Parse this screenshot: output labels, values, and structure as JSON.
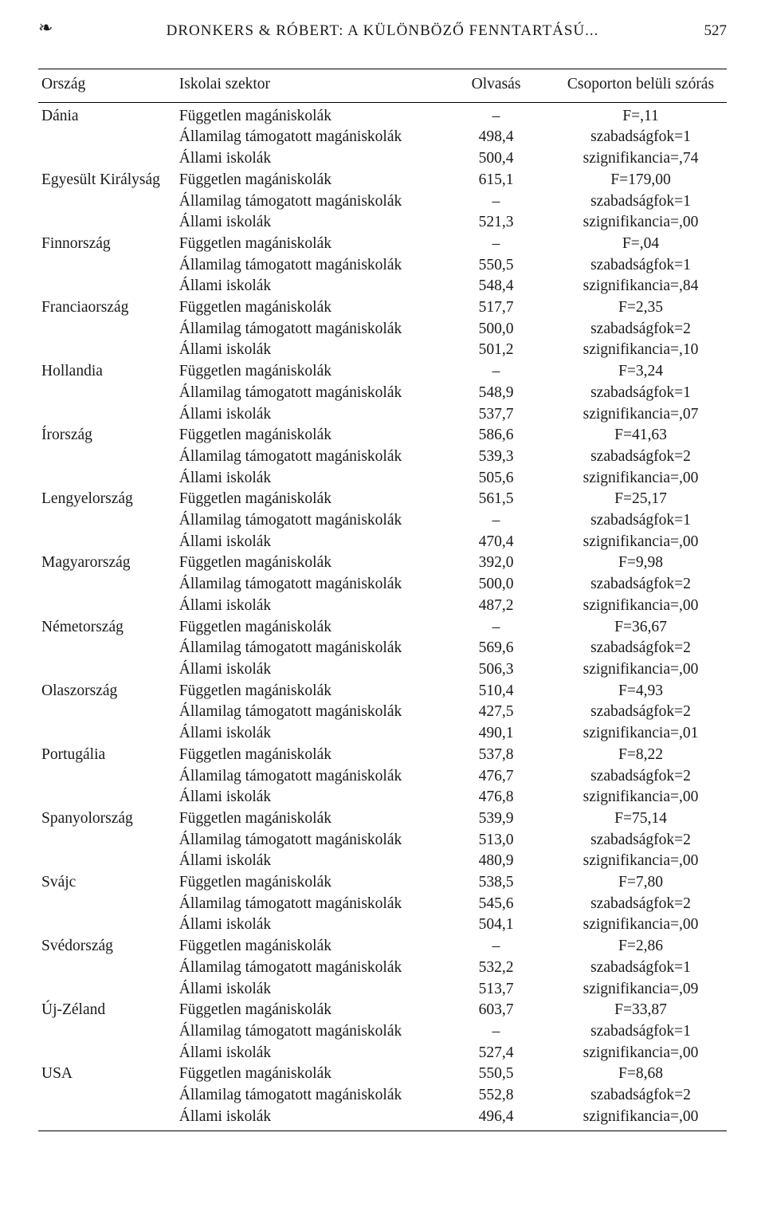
{
  "header": {
    "ornament": "❧",
    "running_title": "DRONKERS & RÓBERT: A KÜLÖNBÖZŐ FENNTARTÁSÚ...",
    "page_number": "527"
  },
  "table": {
    "columns": {
      "country": "Ország",
      "sector": "Iskolai szektor",
      "value": "Olvasás",
      "stat": "Csoporton belüli szórás"
    },
    "sector_labels": {
      "ind": "Független magániskolák",
      "gov": "Államilag támogatott magániskolák",
      "pub": "Állami iskolák"
    },
    "countries": [
      {
        "name": "Dánia",
        "rows": [
          {
            "sector": "ind",
            "value": "–",
            "stat": "F=,11"
          },
          {
            "sector": "gov",
            "value": "498,4",
            "stat": "szabadságfok=1"
          },
          {
            "sector": "pub",
            "value": "500,4",
            "stat": "szignifikancia=,74"
          }
        ]
      },
      {
        "name": "Egyesült Királyság",
        "rows": [
          {
            "sector": "ind",
            "value": "615,1",
            "stat": "F=179,00"
          },
          {
            "sector": "gov",
            "value": "–",
            "stat": "szabadságfok=1"
          },
          {
            "sector": "pub",
            "value": "521,3",
            "stat": "szignifikancia=,00"
          }
        ]
      },
      {
        "name": "Finnország",
        "rows": [
          {
            "sector": "ind",
            "value": "–",
            "stat": "F=,04"
          },
          {
            "sector": "gov",
            "value": "550,5",
            "stat": "szabadságfok=1"
          },
          {
            "sector": "pub",
            "value": "548,4",
            "stat": "szignifikancia=,84"
          }
        ]
      },
      {
        "name": "Franciaország",
        "rows": [
          {
            "sector": "ind",
            "value": "517,7",
            "stat": "F=2,35"
          },
          {
            "sector": "gov",
            "value": "500,0",
            "stat": "szabadságfok=2"
          },
          {
            "sector": "pub",
            "value": "501,2",
            "stat": "szignifikancia=,10"
          }
        ]
      },
      {
        "name": "Hollandia",
        "rows": [
          {
            "sector": "ind",
            "value": "–",
            "stat": "F=3,24"
          },
          {
            "sector": "gov",
            "value": "548,9",
            "stat": "szabadságfok=1"
          },
          {
            "sector": "pub",
            "value": "537,7",
            "stat": "szignifikancia=,07"
          }
        ]
      },
      {
        "name": "Írország",
        "rows": [
          {
            "sector": "ind",
            "value": "586,6",
            "stat": "F=41,63"
          },
          {
            "sector": "gov",
            "value": "539,3",
            "stat": "szabadságfok=2"
          },
          {
            "sector": "pub",
            "value": "505,6",
            "stat": "szignifikancia=,00"
          }
        ]
      },
      {
        "name": "Lengyelország",
        "rows": [
          {
            "sector": "ind",
            "value": "561,5",
            "stat": "F=25,17"
          },
          {
            "sector": "gov",
            "value": "–",
            "stat": "szabadságfok=1"
          },
          {
            "sector": "pub",
            "value": "470,4",
            "stat": "szignifikancia=,00"
          }
        ]
      },
      {
        "name": "Magyarország",
        "rows": [
          {
            "sector": "ind",
            "value": "392,0",
            "stat": "F=9,98"
          },
          {
            "sector": "gov",
            "value": "500,0",
            "stat": "szabadságfok=2"
          },
          {
            "sector": "pub",
            "value": "487,2",
            "stat": "szignifikancia=,00"
          }
        ]
      },
      {
        "name": "Németország",
        "rows": [
          {
            "sector": "ind",
            "value": "–",
            "stat": "F=36,67"
          },
          {
            "sector": "gov",
            "value": "569,6",
            "stat": "szabadságfok=2"
          },
          {
            "sector": "pub",
            "value": "506,3",
            "stat": "szignifikancia=,00"
          }
        ]
      },
      {
        "name": "Olaszország",
        "rows": [
          {
            "sector": "ind",
            "value": "510,4",
            "stat": "F=4,93"
          },
          {
            "sector": "gov",
            "value": "427,5",
            "stat": "szabadságfok=2"
          },
          {
            "sector": "pub",
            "value": "490,1",
            "stat": "szignifikancia=,01"
          }
        ]
      },
      {
        "name": "Portugália",
        "rows": [
          {
            "sector": "ind",
            "value": "537,8",
            "stat": "F=8,22"
          },
          {
            "sector": "gov",
            "value": "476,7",
            "stat": "szabadságfok=2"
          },
          {
            "sector": "pub",
            "value": "476,8",
            "stat": "szignifikancia=,00"
          }
        ]
      },
      {
        "name": "Spanyolország",
        "rows": [
          {
            "sector": "ind",
            "value": "539,9",
            "stat": "F=75,14"
          },
          {
            "sector": "gov",
            "value": "513,0",
            "stat": "szabadságfok=2"
          },
          {
            "sector": "pub",
            "value": "480,9",
            "stat": "szignifikancia=,00"
          }
        ]
      },
      {
        "name": "Svájc",
        "rows": [
          {
            "sector": "ind",
            "value": "538,5",
            "stat": "F=7,80"
          },
          {
            "sector": "gov",
            "value": "545,6",
            "stat": "szabadságfok=2"
          },
          {
            "sector": "pub",
            "value": "504,1",
            "stat": "szignifikancia=,00"
          }
        ]
      },
      {
        "name": "Svédország",
        "rows": [
          {
            "sector": "ind",
            "value": "–",
            "stat": "F=2,86"
          },
          {
            "sector": "gov",
            "value": "532,2",
            "stat": "szabadságfok=1"
          },
          {
            "sector": "pub",
            "value": "513,7",
            "stat": "szignifikancia=,09"
          }
        ]
      },
      {
        "name": "Új-Zéland",
        "rows": [
          {
            "sector": "ind",
            "value": "603,7",
            "stat": "F=33,87"
          },
          {
            "sector": "gov",
            "value": "–",
            "stat": "szabadságfok=1"
          },
          {
            "sector": "pub",
            "value": "527,4",
            "stat": "szignifikancia=,00"
          }
        ]
      },
      {
        "name": "USA",
        "rows": [
          {
            "sector": "ind",
            "value": "550,5",
            "stat": "F=8,68"
          },
          {
            "sector": "gov",
            "value": "552,8",
            "stat": "szabadságfok=2"
          },
          {
            "sector": "pub",
            "value": "496,4",
            "stat": "szignifikancia=,00"
          }
        ]
      }
    ]
  }
}
